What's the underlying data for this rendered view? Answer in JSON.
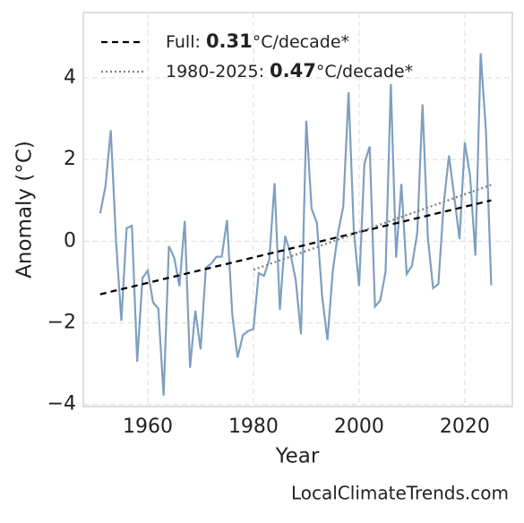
{
  "chart_data": {
    "type": "line",
    "x_label": "Year",
    "y_label": "Anomaly (°C)",
    "watermark": "LocalClimateTrends.com",
    "x": [
      1951,
      1952,
      1953,
      1954,
      1955,
      1956,
      1957,
      1958,
      1959,
      1960,
      1961,
      1962,
      1963,
      1964,
      1965,
      1966,
      1967,
      1968,
      1969,
      1970,
      1971,
      1972,
      1973,
      1974,
      1975,
      1976,
      1977,
      1978,
      1979,
      1980,
      1981,
      1982,
      1983,
      1984,
      1985,
      1986,
      1987,
      1988,
      1989,
      1990,
      1991,
      1992,
      1993,
      1994,
      1995,
      1996,
      1997,
      1998,
      1999,
      2000,
      2001,
      2002,
      2003,
      2004,
      2005,
      2006,
      2007,
      2008,
      2009,
      2010,
      2011,
      2012,
      2013,
      2014,
      2015,
      2016,
      2017,
      2018,
      2019,
      2020,
      2021,
      2022,
      2023,
      2024,
      2025
    ],
    "series": [
      {
        "color": "#7f9fc0",
        "values": [
          0.68,
          1.35,
          2.72,
          0.0,
          -1.95,
          0.32,
          0.38,
          -2.95,
          -0.9,
          -0.72,
          -1.5,
          -1.65,
          -3.78,
          -0.12,
          -0.4,
          -1.1,
          0.5,
          -3.1,
          -1.7,
          -2.65,
          -0.65,
          -0.55,
          -0.38,
          -0.38,
          0.52,
          -1.8,
          -2.85,
          -2.3,
          -2.2,
          -2.15,
          -0.78,
          -0.85,
          -0.45,
          1.42,
          -1.68,
          0.13,
          -0.3,
          -0.95,
          -2.28,
          2.95,
          0.8,
          0.45,
          -1.35,
          -2.42,
          -0.75,
          0.2,
          0.85,
          3.65,
          0.25,
          -1.1,
          1.9,
          2.32,
          -1.6,
          -1.45,
          -0.75,
          3.85,
          -0.4,
          1.4,
          -0.8,
          -0.6,
          0.2,
          3.35,
          0.1,
          -1.15,
          -1.05,
          0.9,
          2.1,
          1.1,
          0.05,
          2.42,
          1.6,
          -0.35,
          4.6,
          2.7,
          -1.08
        ]
      },
      {
        "name": [
          "Full: ",
          "0.31",
          "°C/decade*"
        ],
        "color": "#000000",
        "dash": "7,5",
        "x": [
          1951,
          2025
        ],
        "values": [
          -1.3,
          1.0
        ]
      },
      {
        "name": [
          "1980-2025: ",
          "0.47",
          "°C/decade*"
        ],
        "color": "#808080",
        "dash": "2,3",
        "x": [
          1980,
          2025
        ],
        "values": [
          -0.7,
          1.38
        ]
      }
    ],
    "xlim": [
      1947.8,
      2029
    ],
    "xticks": [
      1960,
      1980,
      2000,
      2020
    ],
    "ylim": [
      -4.05,
      5.6
    ],
    "yticks": [
      {
        "value": -4,
        "label": "−4"
      },
      {
        "value": -2,
        "label": "−2"
      },
      0,
      2,
      4
    ],
    "grid": true,
    "legend": "upper left"
  }
}
